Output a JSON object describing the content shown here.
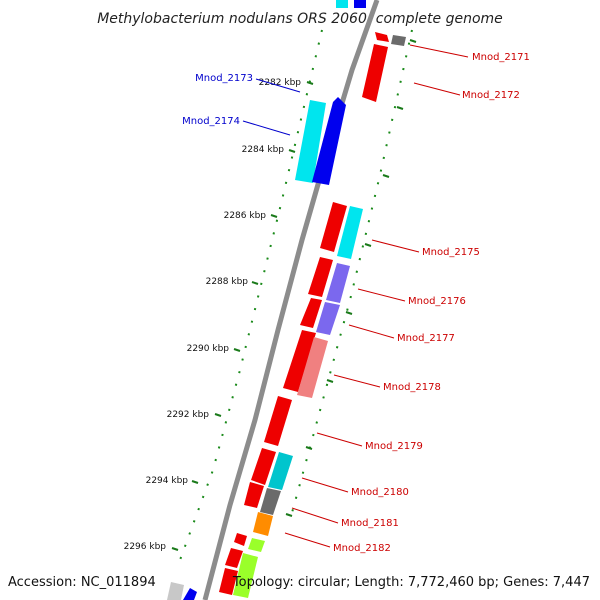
{
  "title": "Methylobacterium nodulans ORS 2060, complete genome",
  "footer": {
    "accession": "Accession: NC_011894",
    "summary": "Topology: circular; Length: 7,772,460 bp; Genes: 7,447"
  },
  "colors": {
    "backbone": "#8c8c8c",
    "tick": "#1a7a1a",
    "label_forward": "#0000cc",
    "label_reverse": "#cc0000",
    "red_gene": "#ee0000",
    "blue_gene": "#0000ee",
    "cyan_gene": "#00e5ee",
    "purple_gene": "#7b68ee",
    "pink_gene": "#f08080",
    "gray_gene": "#6b6b6b",
    "orange_gene": "#ff8c00",
    "green_gene": "#9aff2a",
    "light_gray_gene": "#c8c8c8"
  },
  "scale_labels": [
    "2282 kbp",
    "2284 kbp",
    "2286 kbp",
    "2288 kbp",
    "2290 kbp",
    "2292 kbp",
    "2294 kbp",
    "2296 kbp"
  ],
  "gene_labels": [
    {
      "name": "Mnod_2171",
      "side": "right",
      "strand": "reverse"
    },
    {
      "name": "Mnod_2172",
      "side": "right",
      "strand": "reverse"
    },
    {
      "name": "Mnod_2173",
      "side": "left",
      "strand": "forward"
    },
    {
      "name": "Mnod_2174",
      "side": "left",
      "strand": "forward"
    },
    {
      "name": "Mnod_2175",
      "side": "right",
      "strand": "reverse"
    },
    {
      "name": "Mnod_2176",
      "side": "right",
      "strand": "reverse"
    },
    {
      "name": "Mnod_2177",
      "side": "right",
      "strand": "reverse"
    },
    {
      "name": "Mnod_2178",
      "side": "right",
      "strand": "reverse"
    },
    {
      "name": "Mnod_2179",
      "side": "right",
      "strand": "reverse"
    },
    {
      "name": "Mnod_2180",
      "side": "right",
      "strand": "reverse"
    },
    {
      "name": "Mnod_2181",
      "side": "right",
      "strand": "reverse"
    },
    {
      "name": "Mnod_2182",
      "side": "right",
      "strand": "reverse"
    }
  ]
}
